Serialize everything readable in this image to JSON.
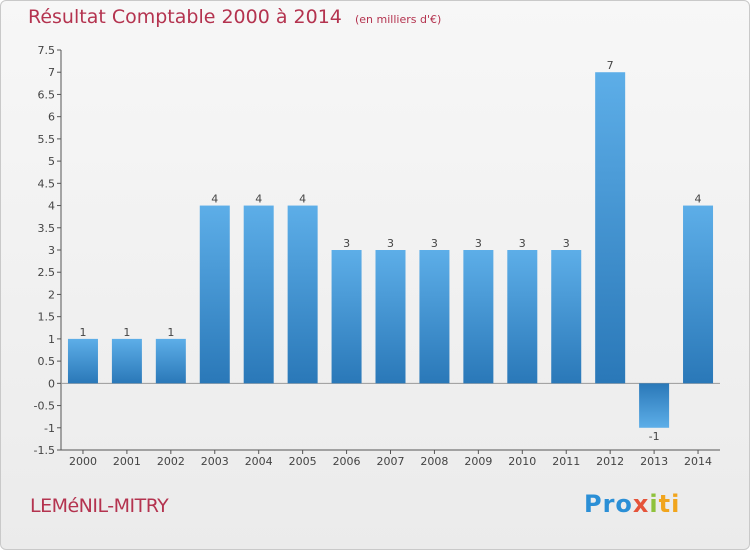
{
  "title": "Résultat Comptable 2000 à 2014",
  "subtitle": "(en milliers d'€)",
  "commune": "LEMéNIL-MITRY",
  "logo": {
    "part1": "Pro",
    "part2": "x",
    "part3": "i",
    "part4": "ti"
  },
  "colors": {
    "bar": "#3d94d3",
    "title": "#b4334f"
  },
  "chart_data": {
    "type": "bar",
    "categories": [
      "2000",
      "2001",
      "2002",
      "2003",
      "2004",
      "2005",
      "2006",
      "2007",
      "2008",
      "2009",
      "2010",
      "2011",
      "2012",
      "2013",
      "2014"
    ],
    "values": [
      1,
      1,
      1,
      4,
      4,
      4,
      3,
      3,
      3,
      3,
      3,
      3,
      7,
      -1,
      4
    ],
    "data_labels": [
      "1",
      "1",
      "1",
      "4",
      "4",
      "4",
      "3",
      "3",
      "3",
      "3",
      "3",
      "3",
      "7",
      "-1",
      "4"
    ],
    "yticks": [
      "-1.5",
      "-1",
      "-0.5",
      "0",
      "0.5",
      "1",
      "1.5",
      "2",
      "2.5",
      "3",
      "3.5",
      "4",
      "4.5",
      "5",
      "5.5",
      "6",
      "6.5",
      "7",
      "7.5"
    ],
    "ylim": [
      -1.5,
      7.5
    ],
    "grid": false
  }
}
